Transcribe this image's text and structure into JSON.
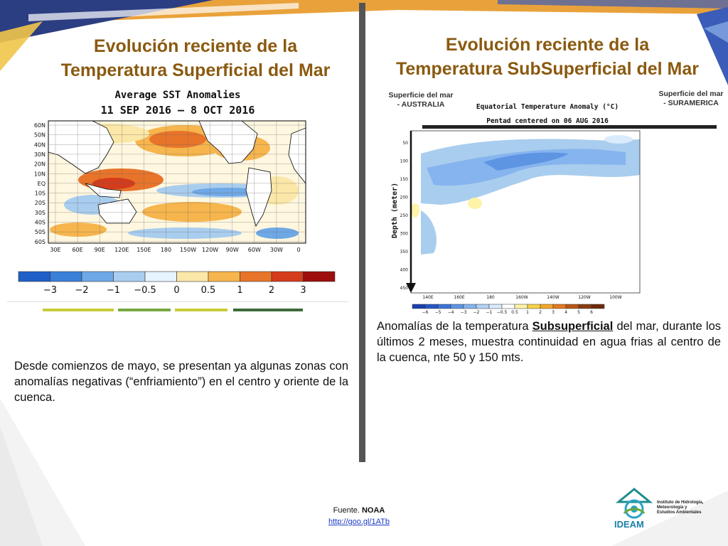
{
  "left": {
    "title_line1": "Evolución reciente de la",
    "title_line2": "Temperatura Superficial del Mar",
    "map": {
      "title_line1": "Average SST Anomalies",
      "title_line2": "11 SEP 2016 – 8 OCT 2016",
      "lat_labels": [
        "60N",
        "50N",
        "40N",
        "30N",
        "20N",
        "10N",
        "EQ",
        "10S",
        "20S",
        "30S",
        "40S",
        "50S",
        "60S"
      ],
      "lon_labels": [
        "30E",
        "60E",
        "90E",
        "120E",
        "150E",
        "180",
        "150W",
        "120W",
        "90W",
        "60W",
        "30W",
        "0"
      ]
    },
    "legend": {
      "labels": [
        "−3",
        "−2",
        "−1",
        "−0.5",
        "0",
        "0.5",
        "1",
        "2",
        "3"
      ],
      "colors": [
        "#1f5fc8",
        "#3a7fd8",
        "#6fa8e6",
        "#a9cdee",
        "#e6f4ff",
        "#fbe7a7",
        "#f6b54d",
        "#e8742a",
        "#d43c1c",
        "#9d0e0c"
      ]
    },
    "body": "Desde comienzos de mayo, se presentan ya algunas zonas con anomalías negativas (“enfriamiento”) en el centro y oriente de la cuenca."
  },
  "right": {
    "title_line1": "Evolución reciente de la",
    "title_line2": "Temperatura SubSuperficial del Mar",
    "label_australia": "Superficie del mar - AUSTRALIA",
    "label_suramerica": "Superficie del mar - SURAMERICA",
    "chart": {
      "title_line1": "Equatorial Temperature Anomaly (°C)",
      "title_line2": "Pentad centered on 06 AUG 2016",
      "ylabel": "Depth (meter)",
      "y_ticks": [
        "50",
        "100",
        "150",
        "200",
        "250",
        "300",
        "350",
        "400",
        "450"
      ],
      "x_ticks": [
        "140E",
        "160E",
        "180",
        "160W",
        "140W",
        "120W",
        "100W"
      ],
      "legend_labels": [
        "−6",
        "−5",
        "−4",
        "−3",
        "−2",
        "−1",
        "−0.5",
        "0.5",
        "1",
        "2",
        "3",
        "4",
        "5",
        "6"
      ],
      "legend_colors": [
        "#1a3fae",
        "#2557c4",
        "#3b74d6",
        "#5d95e3",
        "#86b4ee",
        "#b2d2f6",
        "#d9ebfc",
        "#ffffff",
        "#fff3a8",
        "#f8d24a",
        "#f2a72a",
        "#e37a1f",
        "#b85615",
        "#8a3c10",
        "#6b2a0a"
      ]
    },
    "body_pre": "Anomalías de la temperatura ",
    "body_underline": "Subsuperficial",
    "body_post": " del mar, durante los últimos 2 meses, muestra continuidad en agua frias al centro de la cuenca, nte 50 y 150 mts."
  },
  "footer": {
    "source_prefix": "Fuente. ",
    "source_name": "NOAA",
    "link": "http://goo.gl/1ATb",
    "logo_text": "IDEAM",
    "logo_caption": "Instituto de Hidrología, Meteorología y Estudios Ambientales"
  }
}
